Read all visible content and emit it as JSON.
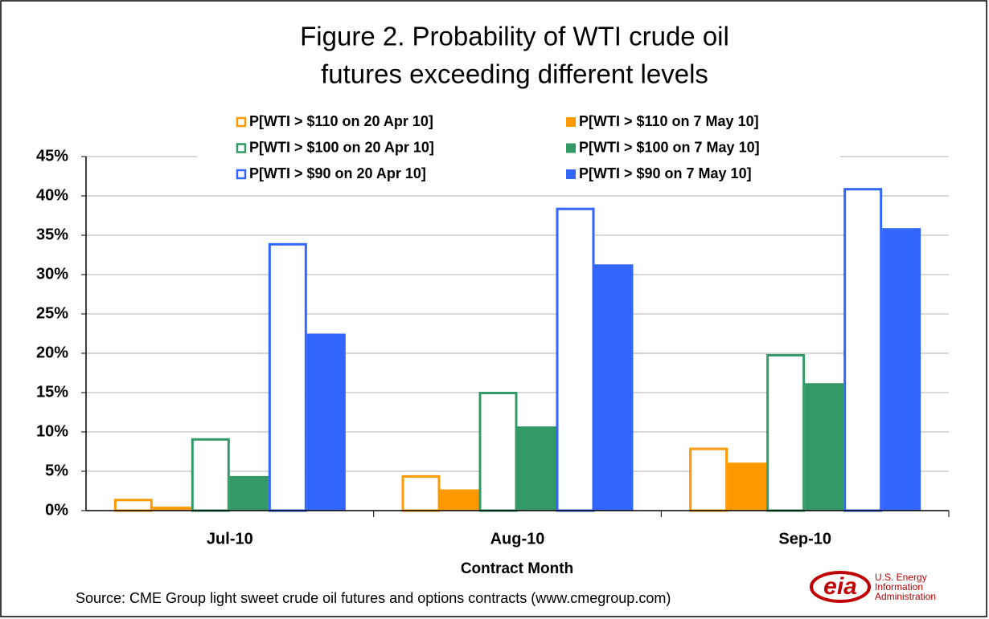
{
  "chart_data": {
    "type": "bar",
    "title": [
      "Figure 2.  Probability of WTI crude oil",
      "futures exceeding different levels"
    ],
    "x_label": "Contract Month",
    "categories": [
      "Jul-10",
      "Aug-10",
      "Sep-10"
    ],
    "series": [
      {
        "name": "P[WTI > $110 on 20 Apr 10]",
        "color": "#ff9900",
        "outline": true,
        "values": [
          1.5,
          4.5,
          8.0
        ]
      },
      {
        "name": "P[WTI > $110 on 7 May 10]",
        "color": "#ff9900",
        "outline": false,
        "values": [
          0.5,
          2.7,
          6.1
        ]
      },
      {
        "name": "P[WTI > $100 on 20 Apr 10]",
        "color": "#339966",
        "outline": true,
        "values": [
          9.2,
          15.1,
          19.9
        ]
      },
      {
        "name": "P[WTI > $100 on 7 May 10]",
        "color": "#339966",
        "outline": false,
        "values": [
          4.4,
          10.7,
          16.2
        ]
      },
      {
        "name": "P[WTI > $90 on 20 Apr 10]",
        "color": "#3366ff",
        "outline": true,
        "values": [
          34.0,
          38.5,
          41.0
        ]
      },
      {
        "name": "P[WTI > $90 on 7 May 10]",
        "color": "#3366ff",
        "outline": false,
        "values": [
          22.5,
          31.3,
          35.9
        ]
      }
    ],
    "ylim": [
      0,
      45
    ],
    "yticks": [
      {
        "value": 0,
        "label": "0%"
      },
      {
        "value": 5,
        "label": "5%"
      },
      {
        "value": 10,
        "label": "10%"
      },
      {
        "value": 15,
        "label": "15%"
      },
      {
        "value": 20,
        "label": "20%"
      },
      {
        "value": 25,
        "label": "25%"
      },
      {
        "value": 30,
        "label": "30%"
      },
      {
        "value": 35,
        "label": "35%"
      },
      {
        "value": 40,
        "label": "40%"
      },
      {
        "value": 45,
        "label": "45%"
      }
    ],
    "grid": true,
    "source": "Source: CME Group light sweet crude oil futures and options contracts (www.cmegroup.com)",
    "logo": {
      "mark": "eia",
      "lines": [
        "U.S. Energy",
        "Information",
        "Administration"
      ]
    }
  }
}
